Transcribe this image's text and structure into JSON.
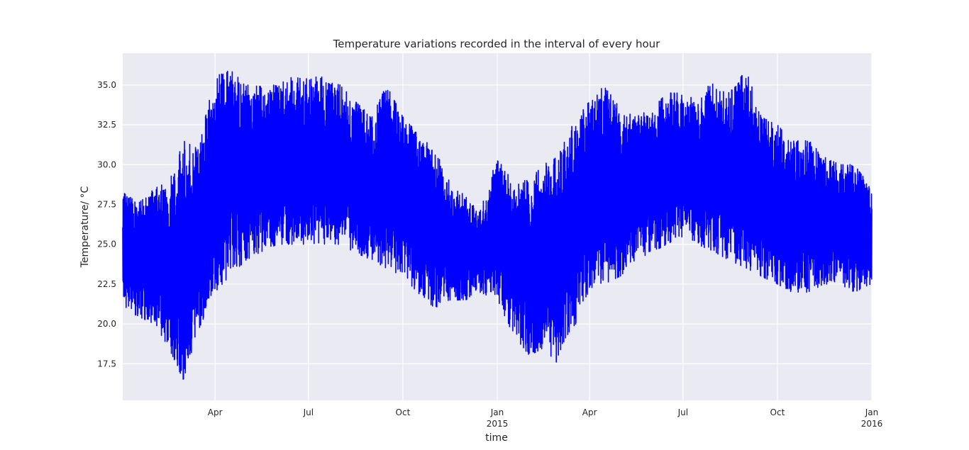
{
  "chart_data": {
    "type": "line",
    "title": "Temperature variations recorded in the interval of every hour",
    "xlabel": "time",
    "ylabel": "Temperature/ °C",
    "ylim": [
      15.2,
      37.0
    ],
    "xlim": [
      "2014-01-01",
      "2016-01-01"
    ],
    "grid": true,
    "background_color": "#eaeaf2",
    "series_color": "#0000ff",
    "y_ticks": [
      {
        "value": 17.5,
        "label": "17.5"
      },
      {
        "value": 20.0,
        "label": "20.0"
      },
      {
        "value": 22.5,
        "label": "22.5"
      },
      {
        "value": 25.0,
        "label": "25.0"
      },
      {
        "value": 27.5,
        "label": "27.5"
      },
      {
        "value": 30.0,
        "label": "30.0"
      },
      {
        "value": 32.5,
        "label": "32.5"
      },
      {
        "value": 35.0,
        "label": "35.0"
      }
    ],
    "x_ticks": [
      {
        "date": "2014-04-01",
        "label": "Apr",
        "sublabel": ""
      },
      {
        "date": "2014-07-01",
        "label": "Jul",
        "sublabel": ""
      },
      {
        "date": "2014-10-01",
        "label": "Oct",
        "sublabel": ""
      },
      {
        "date": "2015-01-01",
        "label": "Jan",
        "sublabel": "2015"
      },
      {
        "date": "2015-04-01",
        "label": "Apr",
        "sublabel": ""
      },
      {
        "date": "2015-07-01",
        "label": "Jul",
        "sublabel": ""
      },
      {
        "date": "2015-10-01",
        "label": "Oct",
        "sublabel": ""
      },
      {
        "date": "2016-01-01",
        "label": "Jan",
        "sublabel": "2016"
      }
    ],
    "series": [
      {
        "x": [
          "2014-01-01",
          "2014-01-15",
          "2014-02-01",
          "2014-02-15",
          "2014-03-01",
          "2014-03-15",
          "2014-04-01",
          "2014-04-15",
          "2014-05-01",
          "2014-05-15",
          "2014-06-01",
          "2014-06-15",
          "2014-07-01",
          "2014-07-15",
          "2014-08-01",
          "2014-08-15",
          "2014-09-01",
          "2014-09-15",
          "2014-10-01",
          "2014-10-15",
          "2014-11-01",
          "2014-11-15",
          "2014-12-01",
          "2014-12-15",
          "2015-01-01",
          "2015-01-15",
          "2015-02-01",
          "2015-02-15",
          "2015-03-01",
          "2015-03-15",
          "2015-04-01",
          "2015-04-15",
          "2015-05-01",
          "2015-05-15",
          "2015-06-01",
          "2015-06-15",
          "2015-07-01",
          "2015-07-15",
          "2015-08-01",
          "2015-08-15",
          "2015-09-01",
          "2015-09-15",
          "2015-10-01",
          "2015-10-15",
          "2015-11-01",
          "2015-11-15",
          "2015-12-01",
          "2015-12-15",
          "2016-01-01"
        ],
        "low": [
          21.0,
          20.5,
          20.0,
          18.5,
          16.5,
          19.5,
          22.0,
          23.0,
          24.0,
          24.5,
          25.0,
          25.0,
          25.0,
          25.0,
          25.0,
          24.5,
          24.0,
          23.5,
          23.0,
          22.0,
          21.0,
          21.5,
          21.5,
          22.0,
          21.5,
          19.5,
          18.0,
          18.5,
          17.5,
          19.5,
          22.0,
          22.5,
          23.0,
          24.0,
          24.5,
          25.0,
          25.5,
          25.0,
          24.5,
          24.0,
          23.5,
          23.0,
          22.5,
          22.0,
          22.0,
          22.5,
          22.5,
          22.0,
          22.5
        ],
        "high": [
          28.5,
          27.5,
          28.5,
          29.0,
          31.5,
          31.0,
          35.5,
          36.0,
          35.0,
          35.0,
          35.0,
          35.5,
          35.5,
          35.5,
          35.0,
          34.0,
          33.0,
          35.0,
          33.0,
          32.0,
          31.0,
          29.0,
          28.0,
          27.0,
          30.5,
          29.0,
          29.0,
          30.0,
          30.5,
          32.5,
          34.0,
          35.0,
          33.5,
          33.0,
          33.5,
          34.5,
          34.5,
          34.0,
          35.5,
          34.5,
          36.0,
          33.0,
          32.5,
          31.5,
          31.5,
          30.5,
          30.0,
          30.0,
          28.5
        ]
      }
    ]
  }
}
